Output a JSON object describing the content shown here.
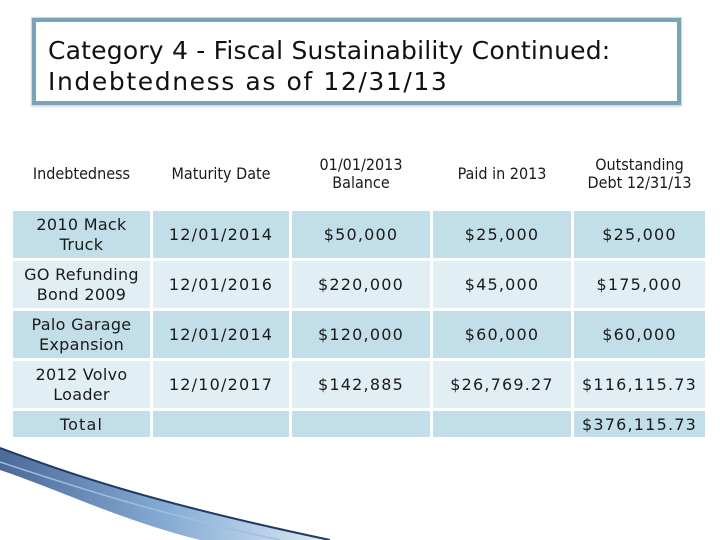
{
  "slide": {
    "title_line1": "Category 4 - Fiscal Sustainability Continued:",
    "title_line2": "Indebtedness as of 12/31/13"
  },
  "table": {
    "headers": [
      "Indebtedness",
      "Maturity Date",
      "01/01/2013 Balance",
      "Paid in 2013",
      "Outstanding Debt 12/31/13"
    ],
    "rows": [
      [
        "2010 Mack Truck",
        "12/01/2014",
        "$50,000",
        "$25,000",
        "$25,000"
      ],
      [
        "GO Refunding Bond 2009",
        "12/01/2016",
        "$220,000",
        "$45,000",
        "$175,000"
      ],
      [
        "Palo Garage Expansion",
        "12/01/2014",
        "$120,000",
        "$60,000",
        "$60,000"
      ],
      [
        "2012 Volvo Loader",
        "12/10/2017",
        "$142,885",
        "$26,769.27",
        "$116,115.73"
      ]
    ],
    "total": [
      "Total",
      "",
      "",
      "",
      "$376,115.73"
    ]
  },
  "colors": {
    "title_border": "#7aa3b8",
    "cell_dark": "#c2dfe9",
    "cell_light": "#e1eff5",
    "swoosh": "#5a86b8"
  }
}
